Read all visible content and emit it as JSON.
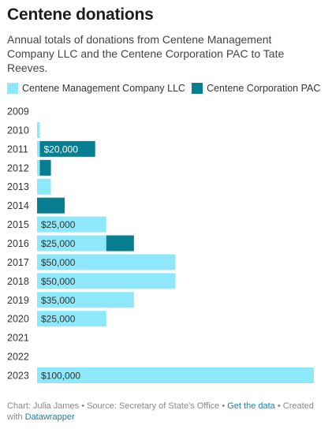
{
  "header": {
    "title": "Centene donations",
    "subtitle": "Annual totals of donations from Centene Management Company LLC and the Centene Corporation PAC to Tate Reeves."
  },
  "footer": {
    "chart_by": "Chart: Julia James",
    "sep1": " • ",
    "source": "Source: Secretary of State's Office",
    "sep2": " • ",
    "get_data": "Get the data",
    "sep3": " • ",
    "created_with": "Created with ",
    "datawrapper": "Datawrapper"
  },
  "colors": {
    "management": "#8ee8fa",
    "pac": "#077f90"
  },
  "chart_data": {
    "type": "bar",
    "orientation": "horizontal",
    "stacked": true,
    "title": "Centene donations",
    "categories": [
      "2009",
      "2010",
      "2011",
      "2012",
      "2013",
      "2014",
      "2015",
      "2016",
      "2017",
      "2018",
      "2019",
      "2020",
      "2021",
      "2022",
      "2023"
    ],
    "series": [
      {
        "name": "Centene Management Company LLC",
        "color": "#8ee8fa",
        "values": [
          0,
          1000,
          1000,
          1000,
          5000,
          0,
          25000,
          25000,
          50000,
          50000,
          35000,
          25000,
          0,
          0,
          100000
        ],
        "labels": [
          "",
          "",
          "",
          "",
          "",
          "",
          "$25,000",
          "$25,000",
          "$50,000",
          "$50,000",
          "$35,000",
          "$25,000",
          "",
          "",
          "$100,000"
        ]
      },
      {
        "name": "Centene Corporation PAC",
        "color": "#077f90",
        "values": [
          0,
          0,
          20000,
          4000,
          0,
          10000,
          0,
          10000,
          0,
          0,
          0,
          0,
          0,
          0,
          0
        ],
        "labels": [
          "",
          "",
          "$20,000",
          "",
          "",
          "",
          "",
          "",
          "",
          "",
          "",
          "",
          "",
          "",
          ""
        ]
      }
    ],
    "xlim": [
      0,
      100000
    ],
    "grid": false,
    "legend_position": "top-left"
  }
}
